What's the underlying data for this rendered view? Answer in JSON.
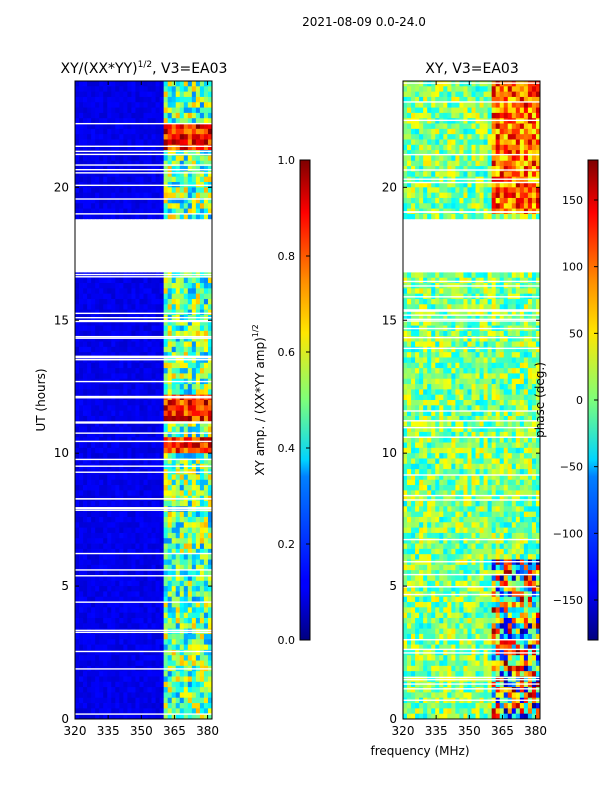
{
  "chart_data": [
    {
      "type": "heatmap",
      "title": "XY/(XX*YY)^1/2, V3=EA03",
      "title_main": "XY/(XX*YY)",
      "title_exp": "1/2",
      "title_suffix": ", V3=EA03",
      "xlabel": "",
      "ylabel": "UT (hours)",
      "xlim": [
        320,
        382
      ],
      "ylim": [
        0,
        24
      ],
      "xticks": [
        "320",
        "335",
        "350",
        "365",
        "380"
      ],
      "xtick_values": [
        320,
        335,
        350,
        365,
        380
      ],
      "yticks": [
        "0",
        "5",
        "10",
        "15",
        "20"
      ],
      "ytick_values": [
        0,
        5,
        10,
        15,
        20
      ],
      "data_gap_hours": [
        16.8,
        18.9
      ],
      "colorbar": {
        "label": "XY amp. / (XX*YY amp)^1/2",
        "label_main": "XY amp. / (XX*YY amp)",
        "label_exp": "1/2",
        "range": [
          0,
          1
        ],
        "ticks": [
          "0.0",
          "0.2",
          "0.4",
          "0.6",
          "0.8",
          "1.0"
        ],
        "tick_values": [
          0,
          0.2,
          0.4,
          0.6,
          0.8,
          1.0
        ]
      }
    },
    {
      "type": "heatmap",
      "title": "XY, V3=EA03",
      "xlabel": "frequency (MHz)",
      "ylabel": "",
      "xlim": [
        320,
        382
      ],
      "ylim": [
        0,
        24
      ],
      "xticks": [
        "320",
        "335",
        "350",
        "365",
        "380"
      ],
      "xtick_values": [
        320,
        335,
        350,
        365,
        380
      ],
      "yticks": [
        "0",
        "5",
        "10",
        "15",
        "20"
      ],
      "ytick_values": [
        0,
        5,
        10,
        15,
        20
      ],
      "data_gap_hours": [
        16.8,
        18.9
      ],
      "colorbar": {
        "label": "phase (deg.)",
        "range": [
          -180,
          180
        ],
        "ticks": [
          "−150",
          "−100",
          "−50",
          "0",
          "50",
          "100",
          "150"
        ],
        "tick_values": [
          -150,
          -100,
          -50,
          0,
          50,
          100,
          150
        ]
      }
    }
  ],
  "suptitle": "2021-08-09 0.0-24.0"
}
